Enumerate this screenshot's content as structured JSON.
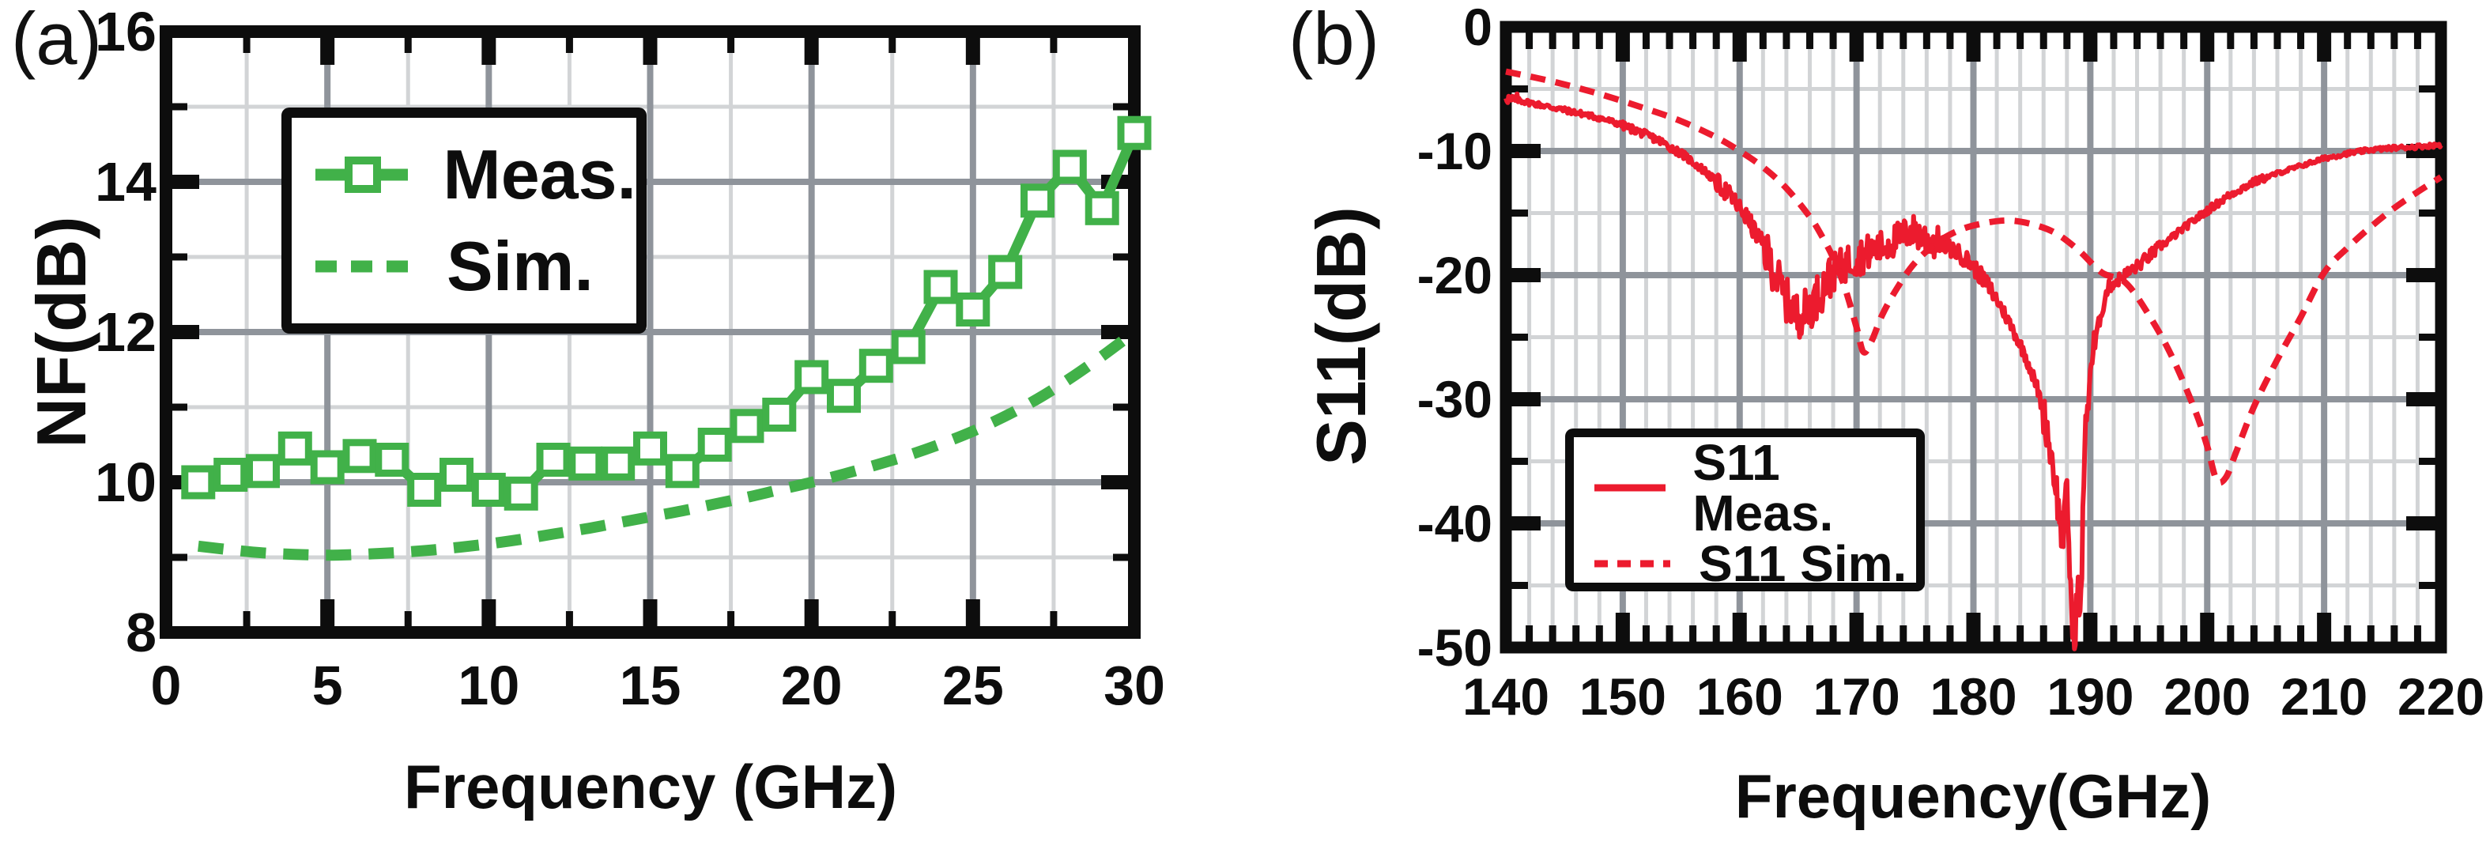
{
  "colors": {
    "green_series": "#41B149",
    "red_series": "#EC1B2E",
    "grid_major": "#8F949B",
    "grid_minor": "#D2D4D6",
    "axis": "#0D0D0D",
    "background": "#FFFFFF"
  },
  "chart_data": [
    {
      "type": "line",
      "panel_tag": "(a)",
      "xlabel": "Frequency (GHz)",
      "ylabel": "NF(dB)",
      "xlim": [
        0,
        30
      ],
      "ylim": [
        8,
        16
      ],
      "grid": {
        "x_minor_step": 2.5,
        "x_major_step": 5,
        "y_minor_step": 1,
        "y_major_step": 2,
        "grid_on": true
      },
      "x_ticks": {
        "values": [
          0,
          5,
          10,
          15,
          20,
          25,
          30
        ],
        "labels": [
          "0",
          "5",
          "10",
          "15",
          "20",
          "25",
          "30"
        ]
      },
      "y_ticks": {
        "values": [
          16,
          14,
          12,
          10,
          8
        ],
        "labels": [
          "16",
          "14",
          "12",
          "10",
          "8"
        ]
      },
      "legend": {
        "position": "top-left",
        "entries": [
          {
            "label": "Meas.",
            "line": "solid",
            "marker": "open-square"
          },
          {
            "label": "Sim.",
            "line": "dashed",
            "marker": "none"
          }
        ]
      },
      "series": [
        {
          "name": "Meas.",
          "style": "solid-with-square-markers",
          "x": [
            1,
            2,
            3,
            4,
            5,
            6,
            7,
            8,
            9,
            10,
            11,
            12,
            13,
            14,
            15,
            16,
            17,
            18,
            19,
            20,
            21,
            22,
            23,
            24,
            25,
            26,
            27,
            28,
            29,
            30
          ],
          "y": [
            10.0,
            10.1,
            10.15,
            10.45,
            10.2,
            10.35,
            10.3,
            9.9,
            10.1,
            9.9,
            9.85,
            10.3,
            10.25,
            10.25,
            10.45,
            10.15,
            10.5,
            10.75,
            10.9,
            11.4,
            11.15,
            11.55,
            11.8,
            12.6,
            12.3,
            12.8,
            13.75,
            14.2,
            13.65,
            14.65
          ]
        },
        {
          "name": "Sim.",
          "style": "dashed",
          "x": [
            1,
            2,
            3,
            4,
            5,
            6,
            7,
            8,
            9,
            10,
            11,
            12,
            13,
            14,
            15,
            16,
            17,
            18,
            19,
            20,
            21,
            22,
            23,
            24,
            25,
            26,
            27,
            28,
            29,
            30
          ],
          "y": [
            9.15,
            9.1,
            9.06,
            9.04,
            9.03,
            9.04,
            9.06,
            9.09,
            9.13,
            9.18,
            9.24,
            9.31,
            9.38,
            9.46,
            9.54,
            9.62,
            9.71,
            9.8,
            9.9,
            10.0,
            10.11,
            10.23,
            10.36,
            10.51,
            10.68,
            10.88,
            11.11,
            11.38,
            11.68,
            12.0
          ]
        }
      ]
    },
    {
      "type": "line",
      "panel_tag": "(b)",
      "xlabel": "Frequency(GHz)",
      "ylabel": "S11(dB)",
      "xlim": [
        140,
        220
      ],
      "ylim": [
        -50,
        0
      ],
      "grid": {
        "x_minor_step": 2,
        "x_major_step": 10,
        "y_minor_step": 5,
        "y_major_step": 10,
        "grid_on": true
      },
      "x_ticks": {
        "values": [
          140,
          150,
          160,
          170,
          180,
          190,
          200,
          210,
          220
        ],
        "labels": [
          "140",
          "150",
          "160",
          "170",
          "180",
          "190",
          "200",
          "210",
          "220"
        ]
      },
      "y_ticks": {
        "values": [
          0,
          -10,
          -20,
          -30,
          -40,
          -50
        ],
        "labels": [
          "0",
          "-10",
          "-20",
          "-30",
          "-40",
          "-50"
        ]
      },
      "legend": {
        "position": "bottom-left",
        "entries": [
          {
            "label": "S11 Meas.",
            "line": "solid",
            "marker": "none"
          },
          {
            "label": "S11 Sim.",
            "line": "dashed",
            "marker": "none"
          }
        ]
      },
      "series": [
        {
          "name": "S11 Meas.",
          "style": "solid-noisy",
          "x": [
            140,
            140.4,
            141,
            142,
            143.5,
            145,
            147,
            149,
            151,
            153,
            155,
            157,
            159,
            160.5,
            162,
            163,
            164,
            165,
            166,
            167,
            168,
            169.5,
            171,
            172.5,
            174,
            174.8,
            175.6,
            176.5,
            177.5,
            178.5,
            179.5,
            180.5,
            181.5,
            182.5,
            183.5,
            184.5,
            185.5,
            186.3,
            187,
            187.6,
            188,
            188.35,
            188.6,
            188.9,
            189.15,
            189.5,
            190,
            190.7,
            191.5,
            192.5,
            194,
            196,
            198,
            200,
            202,
            204,
            206,
            208,
            210,
            212,
            214,
            216,
            218,
            220
          ],
          "y": [
            -5.5,
            -6.0,
            -5.9,
            -6.1,
            -6.4,
            -6.7,
            -7.1,
            -7.6,
            -8.3,
            -9.1,
            -10.2,
            -11.6,
            -13.4,
            -15.2,
            -17.6,
            -19.8,
            -22.0,
            -23.3,
            -22.6,
            -21.2,
            -19.8,
            -18.8,
            -18.2,
            -17.6,
            -16.8,
            -16.4,
            -16.9,
            -17.3,
            -17.6,
            -18.1,
            -18.8,
            -19.9,
            -21.2,
            -22.8,
            -24.6,
            -26.6,
            -29.2,
            -32.4,
            -36.5,
            -41.5,
            -37.5,
            -46.0,
            -50.8,
            -44.5,
            -48.5,
            -34.0,
            -27.5,
            -24.0,
            -21.0,
            -20.3,
            -19.3,
            -17.7,
            -16.2,
            -14.8,
            -13.5,
            -12.5,
            -11.8,
            -11.2,
            -10.6,
            -10.2,
            -9.9,
            -9.75,
            -9.65,
            -9.5
          ],
          "noise_bands": [
            [
              140,
              141,
              0.55
            ],
            [
              141,
              150,
              0.22
            ],
            [
              150,
              158,
              0.32
            ],
            [
              158,
              162,
              0.75
            ],
            [
              162,
              168,
              1.8
            ],
            [
              168,
              171,
              1.5
            ],
            [
              171,
              177,
              1.35
            ],
            [
              177,
              182,
              0.7
            ],
            [
              182,
              186,
              0.55
            ],
            [
              186,
              190.5,
              1.6
            ],
            [
              190.5,
              196,
              0.5
            ],
            [
              196,
              205,
              0.3
            ],
            [
              205,
              220,
              0.17
            ]
          ],
          "clip_floor": -50.35
        },
        {
          "name": "S11 Sim.",
          "style": "dashed",
          "x": [
            140,
            144,
            148,
            152,
            155,
            158,
            160,
            162,
            164,
            166,
            167,
            168,
            169,
            170,
            170.6,
            171.3,
            172.2,
            173.5,
            175,
            177,
            179,
            181,
            183,
            185,
            187,
            189,
            191,
            193,
            195,
            197,
            199,
            200,
            200.8,
            201.6,
            202.5,
            204,
            206,
            208,
            210,
            212,
            214,
            216,
            218,
            220
          ],
          "y": [
            -3.6,
            -4.4,
            -5.4,
            -6.6,
            -7.6,
            -8.9,
            -10.0,
            -11.3,
            -13.0,
            -15.3,
            -16.8,
            -18.6,
            -21.0,
            -24.2,
            -26.2,
            -25.3,
            -23.2,
            -21.0,
            -19.0,
            -17.3,
            -16.3,
            -15.8,
            -15.6,
            -15.9,
            -16.6,
            -18.0,
            -19.8,
            -20.6,
            -23.2,
            -26.6,
            -31.0,
            -33.8,
            -36.5,
            -36.3,
            -34.2,
            -30.6,
            -26.8,
            -23.4,
            -19.8,
            -17.8,
            -16.1,
            -14.6,
            -13.3,
            -12.1
          ]
        }
      ]
    }
  ]
}
